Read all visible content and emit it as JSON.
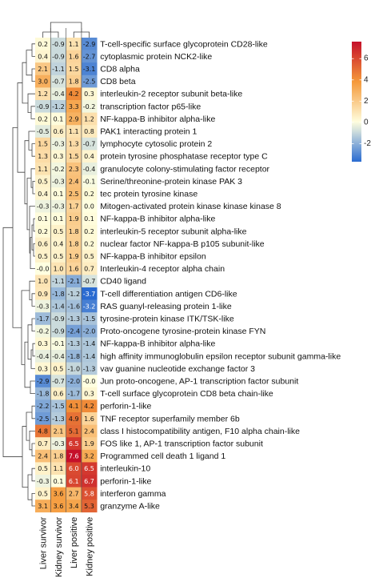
{
  "chart_data": {
    "type": "heatmap",
    "columns": [
      "Liver survivor",
      "Kidney survivor",
      "Liver positive",
      "Kidney positive"
    ],
    "rows": [
      {
        "label": "T-cell-specific surface glycoprotein CD28-like",
        "values": [
          0.2,
          -0.9,
          1.1,
          -2.9
        ]
      },
      {
        "label": "cytoplasmic protein NCK2-like",
        "values": [
          0.4,
          -0.9,
          1.6,
          -2.7
        ]
      },
      {
        "label": "CD8 alpha",
        "values": [
          2.1,
          -1.1,
          1.5,
          -3.1
        ]
      },
      {
        "label": "CD8 beta",
        "values": [
          3.0,
          -0.7,
          1.8,
          -2.5
        ]
      },
      {
        "label": "interleukin-2 receptor subunit beta-like",
        "values": [
          1.2,
          -0.4,
          4.2,
          0.3
        ]
      },
      {
        "label": "transcription factor p65-like",
        "values": [
          -0.9,
          -1.2,
          3.3,
          -0.2
        ]
      },
      {
        "label": "NF-kappa-B inhibitor alpha-like",
        "values": [
          0.2,
          0.1,
          2.9,
          1.2
        ]
      },
      {
        "label": "PAK1 interacting protein 1",
        "values": [
          -0.5,
          0.6,
          1.1,
          0.8
        ]
      },
      {
        "label": "lymphocyte cytosolic protein 2",
        "values": [
          1.5,
          -0.3,
          1.3,
          -0.7
        ]
      },
      {
        "label": "protein tyrosine phosphatase receptor type C",
        "values": [
          1.3,
          0.3,
          1.5,
          0.4
        ]
      },
      {
        "label": "granulocyte colony-stimulating factor receptor",
        "values": [
          1.1,
          -0.2,
          2.3,
          -0.4
        ]
      },
      {
        "label": "Serine/threonine-protein kinase PAK 3",
        "values": [
          0.5,
          -0.3,
          2.4,
          -0.1
        ]
      },
      {
        "label": "tec protein tyrosine kinase",
        "values": [
          0.4,
          0.1,
          2.5,
          0.2
        ]
      },
      {
        "label": "Mitogen-activated protein kinase kinase kinase 8",
        "values": [
          -0.3,
          -0.3,
          1.7,
          0.0
        ]
      },
      {
        "label": "NF-kappa-B inhibitor alpha-like",
        "values": [
          0.1,
          0.1,
          1.9,
          0.1
        ]
      },
      {
        "label": "interleukin-5 receptor subunit alpha-like",
        "values": [
          0.2,
          0.5,
          1.8,
          0.2
        ]
      },
      {
        "label": "nuclear factor NF-kappa-B p105 subunit-like",
        "values": [
          0.6,
          0.4,
          1.8,
          0.2
        ]
      },
      {
        "label": "NF-kappa-B inhibitor epsilon",
        "values": [
          0.5,
          0.5,
          1.9,
          0.5
        ]
      },
      {
        "label": "Interleukin-4 receptor alpha chain",
        "values": [
          -0.0,
          1.0,
          1.6,
          0.7
        ]
      },
      {
        "label": "CD40 ligand",
        "values": [
          1.0,
          -1.1,
          -2.1,
          -0.7
        ]
      },
      {
        "label": "T-cell differentiation antigen CD6-like",
        "values": [
          0.9,
          -1.8,
          -1.2,
          -3.7
        ]
      },
      {
        "label": "RAS guanyl-releasing protein 1-like",
        "values": [
          -0.3,
          -1.4,
          -1.6,
          -3.2
        ]
      },
      {
        "label": "tyrosine-protein kinase ITK/TSK-like",
        "values": [
          -1.7,
          -0.9,
          -1.3,
          -1.5
        ]
      },
      {
        "label": "Proto-oncogene tyrosine-protein kinase FYN",
        "values": [
          -0.2,
          -0.9,
          -2.4,
          -2.0
        ]
      },
      {
        "label": "NF-kappa-B inhibitor alpha-like",
        "values": [
          0.3,
          -0.1,
          -1.3,
          -1.4
        ]
      },
      {
        "label": "high affinity immunoglobulin epsilon receptor subunit gamma-like",
        "values": [
          -0.4,
          -0.4,
          -1.8,
          -1.4
        ]
      },
      {
        "label": "vav guanine nucleotide exchange factor 3",
        "values": [
          0.3,
          0.5,
          -1.0,
          -1.3
        ]
      },
      {
        "label": "Jun proto-oncogene, AP-1 transcription factor subunit",
        "values": [
          -2.9,
          -0.7,
          -2.0,
          -0.0
        ]
      },
      {
        "label": "T-cell surface glycoprotein CD8 beta chain-like",
        "values": [
          -1.8,
          0.6,
          -1.7,
          0.3
        ]
      },
      {
        "label": "perforin-1-like",
        "values": [
          -2.2,
          -1.5,
          4.1,
          4.2
        ]
      },
      {
        "label": "TNF receptor superfamily member 6b",
        "values": [
          -2.5,
          -1.3,
          4.9,
          1.6
        ]
      },
      {
        "label": "class I histocompatibility antigen, F10 alpha chain-like",
        "values": [
          4.8,
          2.1,
          5.1,
          2.4
        ]
      },
      {
        "label": "FOS like 1, AP-1 transcription factor subunit",
        "values": [
          0.7,
          -0.3,
          6.5,
          1.9
        ]
      },
      {
        "label": "Programmed cell death 1 ligand 1",
        "values": [
          2.4,
          1.8,
          7.6,
          3.2
        ]
      },
      {
        "label": "interleukin-10",
        "values": [
          0.5,
          1.1,
          6.0,
          6.5
        ]
      },
      {
        "label": "perforin-1-like",
        "values": [
          -0.3,
          0.1,
          6.1,
          6.7
        ]
      },
      {
        "label": "interferon gamma",
        "values": [
          0.5,
          3.6,
          2.7,
          5.8
        ]
      },
      {
        "label": "granzyme A-like",
        "values": [
          3.1,
          3.6,
          3.4,
          5.3
        ]
      }
    ],
    "colorbar": {
      "ticks": [
        6,
        4,
        2,
        0,
        -2
      ],
      "min": -3.7,
      "max": 7.6
    },
    "colors": {
      "negative": "#2a6bd1",
      "neutral": "#ffffe0",
      "mid_positive": "#f59a3a",
      "high_positive": "#c5102a"
    }
  }
}
